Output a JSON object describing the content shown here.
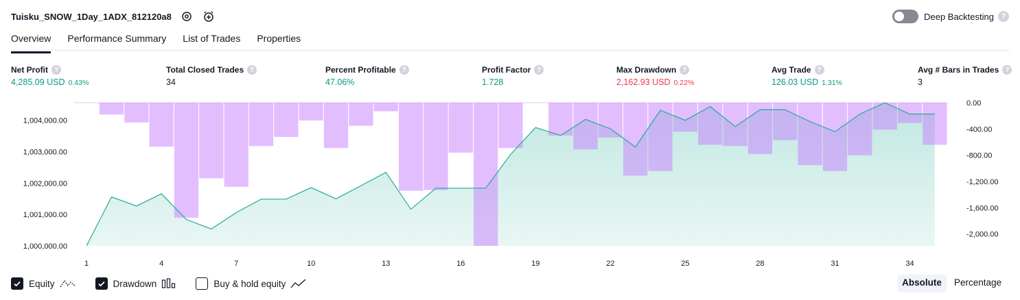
{
  "header": {
    "strategy_title": "Tuisku_SNOW_1Day_1ADX_812120a8",
    "deep_backtesting_label": "Deep Backtesting",
    "deep_backtesting_on": false,
    "help_glyph": "?"
  },
  "tabs": [
    {
      "label": "Overview",
      "active": true
    },
    {
      "label": "Performance Summary",
      "active": false
    },
    {
      "label": "List of Trades",
      "active": false
    },
    {
      "label": "Properties",
      "active": false
    }
  ],
  "stats": {
    "net_profit": {
      "label": "Net Profit",
      "value": "4,285.09 USD",
      "pct": "0.43%"
    },
    "total_closed_trades": {
      "label": "Total Closed Trades",
      "value": "34"
    },
    "percent_profitable": {
      "label": "Percent Profitable",
      "value": "47.06%"
    },
    "profit_factor": {
      "label": "Profit Factor",
      "value": "1.728"
    },
    "max_drawdown": {
      "label": "Max Drawdown",
      "value": "2,162.93 USD",
      "pct": "0.22%"
    },
    "avg_trade": {
      "label": "Avg Trade",
      "value": "126.03 USD",
      "pct": "1.31%"
    },
    "avg_bars": {
      "label": "Avg # Bars in Trades",
      "value": "3"
    }
  },
  "legend": {
    "equity": {
      "label": "Equity",
      "checked": true
    },
    "drawdown": {
      "label": "Drawdown",
      "checked": true
    },
    "buy_hold": {
      "label": "Buy & hold equity",
      "checked": false
    }
  },
  "scale": {
    "absolute": "Absolute",
    "percentage": "Percentage",
    "selected": "absolute"
  },
  "colors": {
    "positive": "#089981",
    "negative": "#f23645",
    "equity_line": "#22ab94",
    "equity_fill": "#22ab94",
    "drawdown_bar": "#c77dff"
  },
  "chart_data": {
    "type": "line+bar",
    "x": [
      1,
      2,
      3,
      4,
      5,
      6,
      7,
      8,
      9,
      10,
      11,
      12,
      13,
      14,
      15,
      16,
      17,
      18,
      19,
      20,
      21,
      22,
      23,
      24,
      25,
      26,
      27,
      28,
      29,
      30,
      31,
      32,
      33,
      34,
      35
    ],
    "x_ticks": [
      1,
      4,
      7,
      10,
      13,
      16,
      19,
      22,
      25,
      28,
      31,
      34
    ],
    "series": [
      {
        "axis": "left",
        "values": [
          1000000,
          1001560,
          1001270,
          1001660,
          1000840,
          1000540,
          1001060,
          1001490,
          1001490,
          1001860,
          1001500,
          1001920,
          1002340,
          1001170,
          1001840,
          1001840,
          1001840,
          1002920,
          1003770,
          1003520,
          1004030,
          1003730,
          1003150,
          1004320,
          1004000,
          1004440,
          1003800,
          1004340,
          1004340,
          1003960,
          1003640,
          1004200,
          1004560,
          1004200,
          1004200
        ]
      },
      {
        "axis": "right",
        "values": [
          0,
          -180,
          -300,
          -670,
          -1750,
          -1150,
          -1280,
          -660,
          -520,
          -270,
          -690,
          -350,
          -130,
          -1340,
          -1330,
          -760,
          -2180,
          -690,
          0,
          -500,
          -710,
          -530,
          -1110,
          -1040,
          -440,
          -640,
          -660,
          -780,
          -570,
          -950,
          -1040,
          -800,
          -410,
          -310,
          -640
        ]
      }
    ],
    "y_left_ticks": [
      "1,000,000.00",
      "1,001,000.00",
      "1,002,000.00",
      "1,003,000.00",
      "1,004,000.00"
    ],
    "y_left_range": [
      1000000,
      1004560
    ],
    "y_right_ticks": [
      "0.00",
      "-400.00",
      "-800.00",
      "-1,200.00",
      "-1,600.00",
      "-2,000.00"
    ],
    "y_right_range": [
      -2180,
      0
    ]
  }
}
